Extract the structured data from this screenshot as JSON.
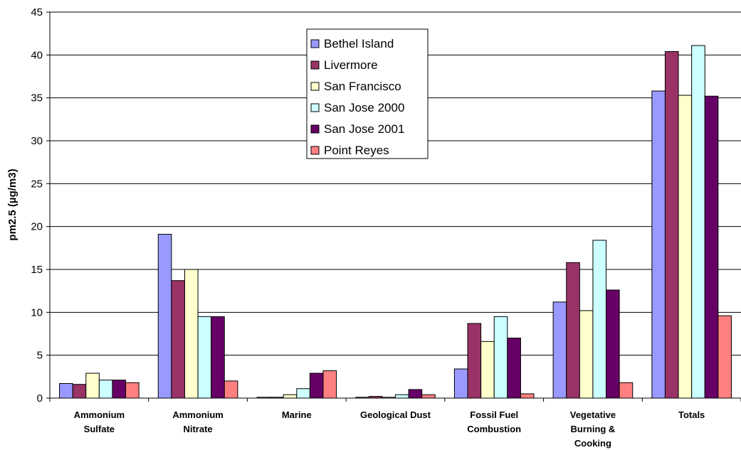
{
  "chart_data": {
    "type": "bar",
    "ylabel": "pm2.5 (µg/m3)",
    "xlabel": "",
    "ylim": [
      0,
      45
    ],
    "yticks": [
      0,
      5,
      10,
      15,
      20,
      25,
      30,
      35,
      40,
      45
    ],
    "grid": "horizontal",
    "legend_position": "top-center",
    "categories": [
      [
        "Ammonium",
        "Sulfate"
      ],
      [
        "Ammonium",
        "Nitrate"
      ],
      [
        "Marine"
      ],
      [
        "Geological Dust"
      ],
      [
        "Fossil Fuel",
        "Combustion"
      ],
      [
        "Vegetative",
        "Burning &",
        "Cooking"
      ],
      [
        "Totals"
      ]
    ],
    "series": [
      {
        "name": "Bethel Island",
        "color": "#9999ff",
        "values": [
          1.7,
          19.1,
          0.1,
          0.1,
          3.4,
          11.2,
          35.8
        ]
      },
      {
        "name": "Livermore",
        "color": "#993366",
        "values": [
          1.6,
          13.7,
          0.1,
          0.2,
          8.7,
          15.8,
          40.4
        ]
      },
      {
        "name": "San Francisco",
        "color": "#ffffcc",
        "values": [
          2.9,
          15.0,
          0.4,
          0.1,
          6.6,
          10.2,
          35.3
        ]
      },
      {
        "name": "San Jose 2000",
        "color": "#ccffff",
        "values": [
          2.1,
          9.5,
          1.1,
          0.4,
          9.5,
          18.4,
          41.1
        ]
      },
      {
        "name": "San Jose 2001",
        "color": "#660066",
        "values": [
          2.1,
          9.5,
          2.9,
          1.0,
          7.0,
          12.6,
          35.2
        ]
      },
      {
        "name": "Point Reyes",
        "color": "#ff8080",
        "values": [
          1.8,
          2.0,
          3.2,
          0.4,
          0.5,
          1.8,
          9.6
        ]
      }
    ]
  }
}
